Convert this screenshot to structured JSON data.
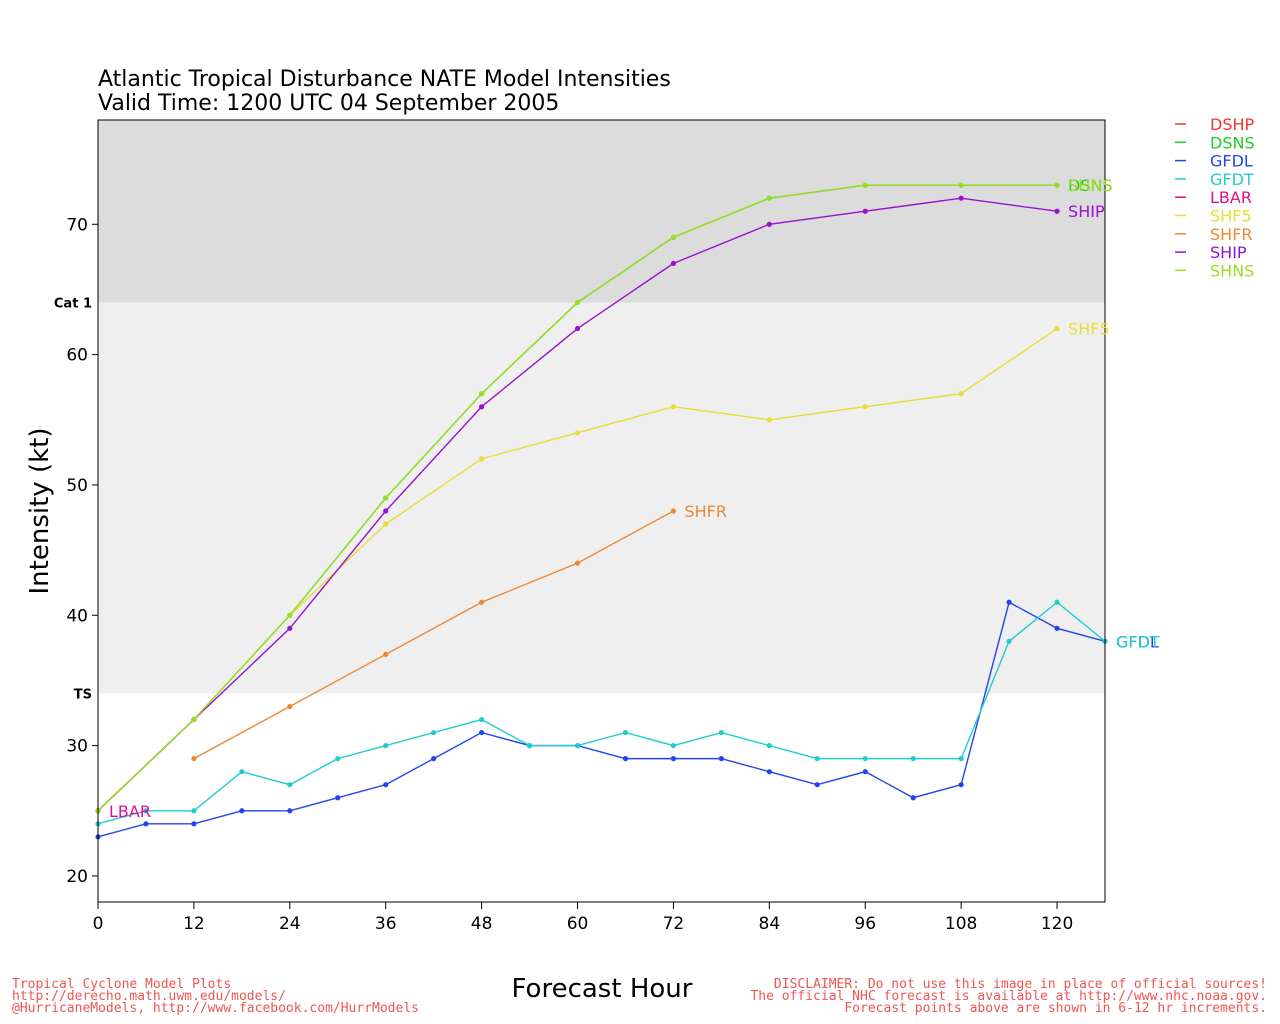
{
  "chart_data": {
    "type": "line",
    "title": "Atlantic Tropical Disturbance NATE Model Intensities",
    "subtitle": "Valid Time: 1200 UTC 04 September 2005",
    "xlabel": "Forecast Hour",
    "ylabel": "Intensity (kt)",
    "xlim": [
      0,
      126
    ],
    "ylim": [
      18,
      78
    ],
    "xticks": [
      0,
      12,
      24,
      36,
      48,
      60,
      72,
      84,
      96,
      108,
      120
    ],
    "yticks": [
      20,
      30,
      40,
      50,
      60,
      70
    ],
    "bands": [
      {
        "label": "TS",
        "from": 34,
        "to": 64,
        "color": "#efefef"
      },
      {
        "label": "Cat 1",
        "from": 64,
        "to": 78,
        "color": "#dcdcdc"
      }
    ],
    "series": [
      {
        "name": "DSHP",
        "color": "#ee3333",
        "x": [],
        "y": [],
        "end_label": false
      },
      {
        "name": "DSNS",
        "color": "#22cc22",
        "x": [
          0,
          12,
          24,
          36,
          48,
          60,
          72,
          84,
          96,
          108,
          120
        ],
        "y": [
          25,
          32,
          40,
          49,
          57,
          64,
          69,
          72,
          73,
          73,
          73
        ],
        "end_label": true
      },
      {
        "name": "GFDL",
        "color": "#2244ee",
        "x": [
          0,
          6,
          12,
          18,
          24,
          30,
          36,
          42,
          48,
          54,
          60,
          66,
          72,
          78,
          84,
          90,
          96,
          102,
          108,
          114,
          120,
          126
        ],
        "y": [
          23,
          24,
          24,
          25,
          25,
          26,
          27,
          29,
          31,
          30,
          30,
          29,
          29,
          29,
          28,
          27,
          28,
          26,
          27,
          41,
          39,
          38
        ],
        "end_label": true
      },
      {
        "name": "GFDT",
        "color": "#22cccc",
        "x": [
          0,
          6,
          12,
          18,
          24,
          30,
          36,
          42,
          48,
          54,
          60,
          66,
          72,
          78,
          84,
          90,
          96,
          102,
          108,
          114,
          120,
          126
        ],
        "y": [
          24,
          25,
          25,
          28,
          27,
          29,
          30,
          31,
          32,
          30,
          30,
          31,
          30,
          31,
          30,
          29,
          29,
          29,
          29,
          38,
          41,
          38
        ],
        "end_label": true
      },
      {
        "name": "LBAR",
        "color": "#dd1188",
        "x": [
          0
        ],
        "y": [
          25
        ],
        "end_label": true
      },
      {
        "name": "SHF5",
        "color": "#e8dd33",
        "x": [
          0,
          12,
          24,
          36,
          48,
          60,
          72,
          84,
          96,
          108,
          120
        ],
        "y": [
          25,
          32,
          40,
          47,
          52,
          54,
          56,
          55,
          56,
          57,
          62
        ],
        "end_label": true
      },
      {
        "name": "SHFR",
        "color": "#ee8833",
        "x": [
          12,
          24,
          36,
          48,
          60,
          72
        ],
        "y": [
          29,
          33,
          37,
          41,
          44,
          48
        ],
        "end_label": true
      },
      {
        "name": "SHIP",
        "color": "#9911cc",
        "x": [
          0,
          12,
          24,
          36,
          48,
          60,
          72,
          84,
          96,
          108,
          120
        ],
        "y": [
          25,
          32,
          39,
          48,
          56,
          62,
          67,
          70,
          71,
          72,
          71
        ],
        "end_label": true
      },
      {
        "name": "SHNS",
        "color": "#99dd22",
        "x": [
          0,
          12,
          24,
          36,
          48,
          60,
          72,
          84,
          96,
          108,
          120
        ],
        "y": [
          25,
          32,
          40,
          49,
          57,
          64,
          69,
          72,
          73,
          73,
          73
        ],
        "end_label": true
      }
    ],
    "legend_position": "right"
  },
  "footer": {
    "left_lines": [
      "Tropical Cyclone Model Plots",
      "http://derecho.math.uwm.edu/models/",
      "@HurricaneModels, http://www.facebook.com/HurrModels"
    ],
    "right_lines": [
      "DISCLAIMER: Do not use this image in place of official sources!",
      "The official NHC forecast is available at http://www.nhc.noaa.gov.",
      "Forecast points above are shown in 6-12 hr increments."
    ]
  }
}
